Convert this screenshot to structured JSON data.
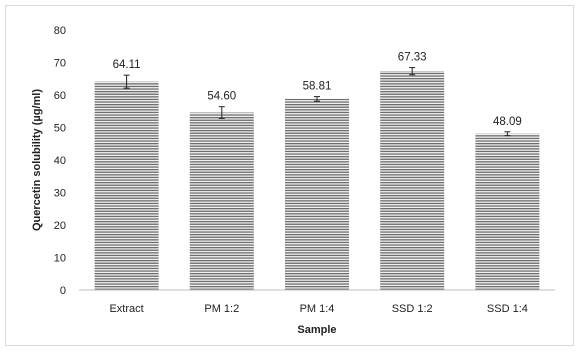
{
  "chart_data": {
    "type": "bar",
    "title": "",
    "xlabel": "Sample",
    "ylabel": "Quercetin solubility  (µg/ml)",
    "categories": [
      "Extract",
      "PM 1:2",
      "PM 1:4",
      "SSD 1:2",
      "SSD 1:4"
    ],
    "values": [
      64.11,
      54.6,
      58.81,
      67.33,
      48.09
    ],
    "value_labels": [
      "64.11",
      "54.60",
      "58.81",
      "67.33",
      "48.09"
    ],
    "errors": [
      2.0,
      1.8,
      0.7,
      1.1,
      0.6
    ],
    "ylim": [
      0,
      80
    ],
    "yticks": [
      0,
      10,
      20,
      30,
      40,
      50,
      60,
      70,
      80
    ],
    "grid": false,
    "legend": "none",
    "colors": {
      "bar_stripe_dark": "#6e6e6e",
      "bar_stripe_light": "#f0f0f0",
      "axis": "#bfbfbf",
      "error_bar": "#222222"
    }
  }
}
